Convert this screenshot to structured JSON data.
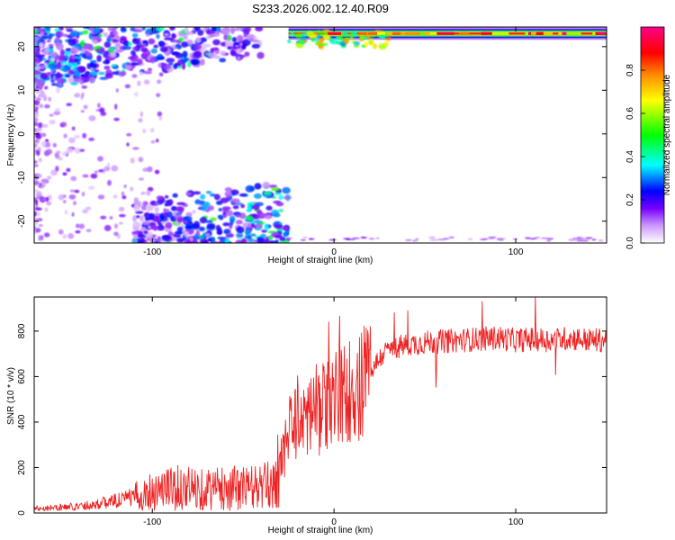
{
  "figure": {
    "title": "S233.2026.002.12.40.R09"
  },
  "chart_data": [
    {
      "type": "heatmap",
      "xlabel": "Height of straight line (km)",
      "ylabel": "Frequency (Hz)",
      "xlim": [
        -165,
        150
      ],
      "ylim": [
        -25,
        24.5
      ],
      "xticks": [
        -100,
        0,
        100
      ],
      "yticks": [
        -20,
        -10,
        0,
        10,
        20
      ],
      "grid": false,
      "colorbar": {
        "label": "Normalized spectral amplitude",
        "range": [
          0,
          1
        ],
        "ticks": [
          0.0,
          0.2,
          0.4,
          0.6,
          0.8
        ],
        "colormap": [
          "#ffffff",
          "#cc99ff",
          "#7700ff",
          "#0000ff",
          "#00ffff",
          "#00ff00",
          "#ffff00",
          "#ff8800",
          "#ff0000",
          "#ff0088"
        ]
      },
      "features": [
        {
          "description": "carrier line",
          "x_range": [
            -25,
            150
          ],
          "y": 23,
          "amplitude": 0.9
        },
        {
          "description": "upper scattered band",
          "x_range": [
            -165,
            -40
          ],
          "y_range": [
            10,
            24.5
          ],
          "amplitude": 0.35
        },
        {
          "description": "lower scattered band",
          "x_range": [
            -110,
            -25
          ],
          "y_range": [
            -25,
            -15
          ],
          "amplitude": 0.35
        }
      ]
    },
    {
      "type": "line",
      "xlabel": "Height of straight line (km)",
      "ylabel": "SNR (10 * v/v)",
      "xlim": [
        -165,
        150
      ],
      "ylim": [
        0,
        950
      ],
      "xticks": [
        -100,
        0,
        100
      ],
      "yticks": [
        0,
        200,
        400,
        600,
        800
      ],
      "grid": false,
      "line_color": "#ee2222",
      "series": [
        {
          "x": [
            -165,
            -150,
            -140,
            -130,
            -120,
            -110,
            -100,
            -90,
            -80,
            -70,
            -60,
            -50,
            -40,
            -35,
            -30,
            -25,
            -20,
            -15,
            -12,
            -10,
            -5,
            0,
            5,
            10,
            15,
            20,
            25,
            30,
            40,
            50,
            60,
            70,
            80,
            90,
            100,
            110,
            120,
            130,
            140,
            150
          ],
          "y": [
            20,
            25,
            30,
            40,
            55,
            70,
            100,
            110,
            110,
            105,
            110,
            110,
            115,
            120,
            200,
            350,
            420,
            430,
            440,
            450,
            470,
            500,
            520,
            550,
            580,
            620,
            680,
            720,
            740,
            750,
            755,
            760,
            765,
            770,
            760,
            765,
            760,
            770,
            760,
            760
          ]
        }
      ]
    }
  ]
}
